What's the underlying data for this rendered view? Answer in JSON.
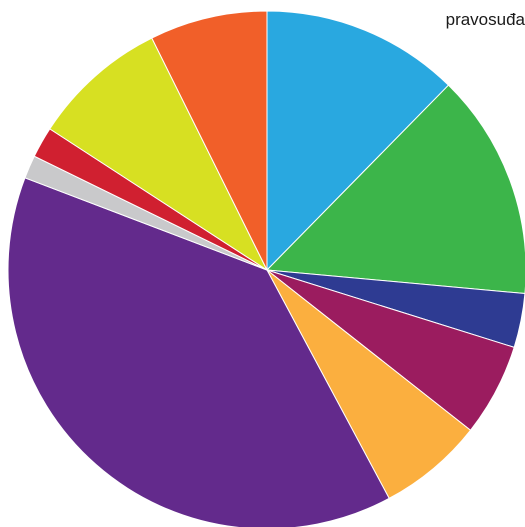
{
  "chart_data": {
    "type": "pie",
    "title": "",
    "annotation": "pravosuđa",
    "slices": [
      {
        "value": 12.8,
        "color": "#29a8e0"
      },
      {
        "value": 14.6,
        "color": "#3cb54a"
      },
      {
        "value": 3.5,
        "color": "#2e3b92"
      },
      {
        "value": 6.0,
        "color": "#9b1c5f"
      },
      {
        "value": 6.8,
        "color": "#fbaf3f"
      },
      {
        "value": 40.0,
        "color": "#632a8c"
      },
      {
        "value": 1.5,
        "color": "#c9c9cb"
      },
      {
        "value": 2.0,
        "color": "#d02030"
      },
      {
        "value": 8.8,
        "color": "#d7e022"
      },
      {
        "value": 7.6,
        "color": "#f15f29"
      }
    ],
    "start": "top",
    "direction": "clockwise",
    "legend": "none"
  }
}
